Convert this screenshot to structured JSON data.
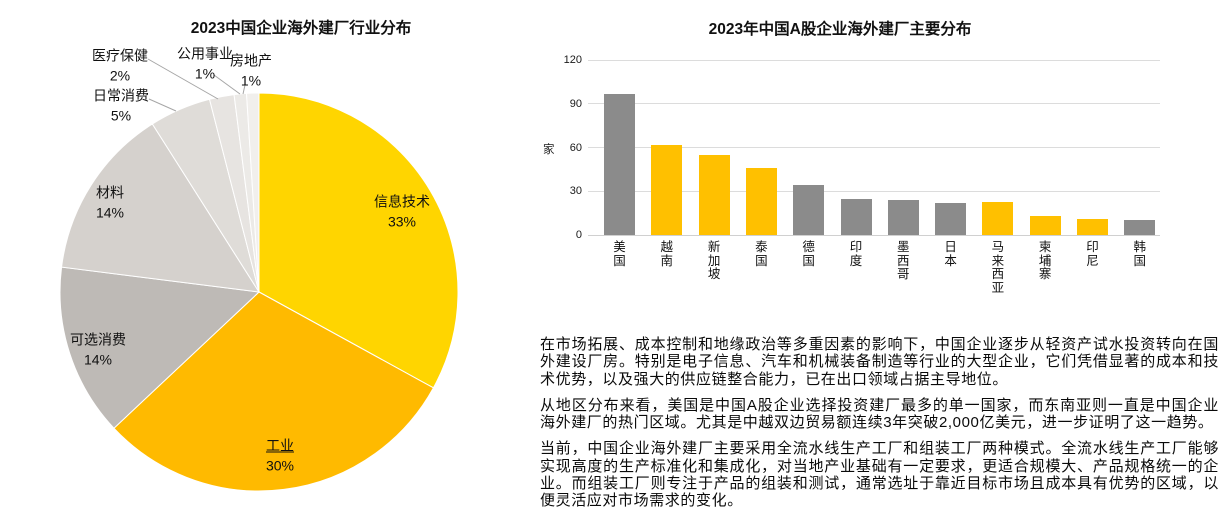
{
  "page": {
    "background": "#FFFFFF"
  },
  "chart_data": [
    {
      "type": "pie",
      "title": "2023中国企业海外建厂行业分布",
      "start": "12-oclock",
      "direction": "clockwise",
      "label_format": "name + percent",
      "slices": [
        {
          "label": "信息技术",
          "value": 33,
          "color": "#FFD500"
        },
        {
          "label": "工业",
          "value": 30,
          "color": "#FFBA00"
        },
        {
          "label": "可选消费",
          "value": 14,
          "color": "#BEBAB6"
        },
        {
          "label": "材料",
          "value": 14,
          "color": "#D5D1CD"
        },
        {
          "label": "日常消费",
          "value": 5,
          "color": "#DFDCD8"
        },
        {
          "label": "医疗保健",
          "value": 2,
          "color": "#E7E4E1"
        },
        {
          "label": "公用事业",
          "value": 1,
          "color": "#ECEAE7"
        },
        {
          "label": "房地产",
          "value": 1,
          "color": "#F1EFEC"
        }
      ]
    },
    {
      "type": "bar",
      "title": "2023年中国A股企业海外建厂主要分布",
      "ylabel": "家",
      "xlabel": "",
      "ylim": [
        0,
        120
      ],
      "yticks": [
        0,
        30,
        60,
        90,
        120
      ],
      "grid": true,
      "legend": "none",
      "categories": [
        "美国",
        "越南",
        "新加坡",
        "泰国",
        "德国",
        "印度",
        "墨西哥",
        "日本",
        "马来西亚",
        "柬埔寨",
        "印尼",
        "韩国"
      ],
      "values": [
        97,
        62,
        55,
        46,
        34,
        25,
        24,
        22,
        23,
        13,
        11,
        10
      ],
      "bar_colors": [
        "#8B8B8B",
        "#FFC000",
        "#FFC000",
        "#FFC000",
        "#8B8B8B",
        "#8B8B8B",
        "#8B8B8B",
        "#8B8B8B",
        "#FFC000",
        "#FFC000",
        "#FFC000",
        "#8B8B8B"
      ],
      "color_legend": {
        "yellow": "#FFC000",
        "gray": "#8B8B8B"
      }
    }
  ],
  "paragraphs": [
    "在市场拓展、成本控制和地缘政治等多重因素的影响下，中国企业逐步从轻资产试水投资转向在国外建设厂房。特别是电子信息、汽车和机械装备制造等行业的大型企业，它们凭借显著的成本和技术优势，以及强大的供应链整合能力，已在出口领域占据主导地位。",
    "从地区分布来看，美国是中国A股企业选择投资建厂最多的单一国家，而东南亚则一直是中国企业海外建厂的热门区域。尤其是中越双边贸易额连续3年突破2,000亿美元，进一步证明了这一趋势。",
    "当前，中国企业海外建厂主要采用全流水线生产工厂和组装工厂两种模式。全流水线生产工厂能够实现高度的生产标准化和集成化，对当地产业基础有一定要求，更适合规模大、产品规格统一的企业。而组装工厂则专注于产品的组装和测试，通常选址于靠近目标市场且成本具有优势的区域，以便灵活应对市场需求的变化。"
  ]
}
